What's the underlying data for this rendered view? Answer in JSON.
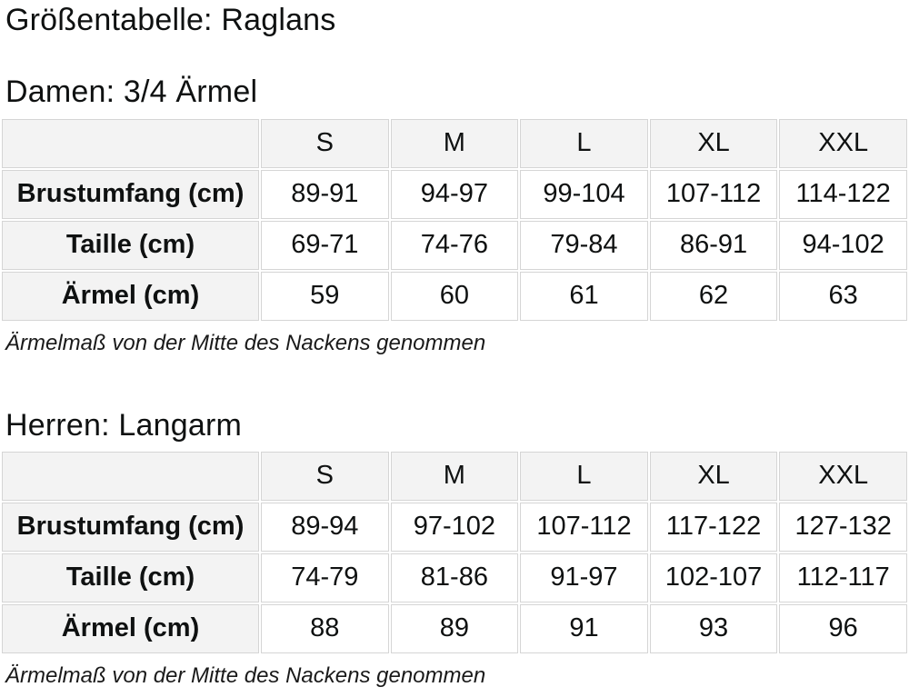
{
  "page_title": "Größentabelle: Raglans",
  "colors": {
    "text": "#0f1111",
    "header_bg": "#f3f3f3",
    "border": "#d5d5d5",
    "cell_bg": "#ffffff"
  },
  "sections": [
    {
      "heading": "Damen: 3/4 Ärmel",
      "columns": [
        "S",
        "M",
        "L",
        "XL",
        "XXL"
      ],
      "rows": [
        {
          "label": "Brustumfang (cm)",
          "values": [
            "89-91",
            "94-97",
            "99-104",
            "107-112",
            "114-122"
          ]
        },
        {
          "label": "Taille (cm)",
          "values": [
            "69-71",
            "74-76",
            "79-84",
            "86-91",
            "94-102"
          ]
        },
        {
          "label": "Ärmel (cm)",
          "values": [
            "59",
            "60",
            "61",
            "62",
            "63"
          ]
        }
      ],
      "note": "Ärmelmaß von der Mitte des Nackens genommen"
    },
    {
      "heading": "Herren: Langarm",
      "columns": [
        "S",
        "M",
        "L",
        "XL",
        "XXL"
      ],
      "rows": [
        {
          "label": "Brustumfang (cm)",
          "values": [
            "89-94",
            "97-102",
            "107-112",
            "117-122",
            "127-132"
          ]
        },
        {
          "label": "Taille (cm)",
          "values": [
            "74-79",
            "81-86",
            "91-97",
            "102-107",
            "112-117"
          ]
        },
        {
          "label": "Ärmel (cm)",
          "values": [
            "88",
            "89",
            "91",
            "93",
            "96"
          ]
        }
      ],
      "note": "Ärmelmaß von der Mitte des Nackens genommen"
    }
  ]
}
